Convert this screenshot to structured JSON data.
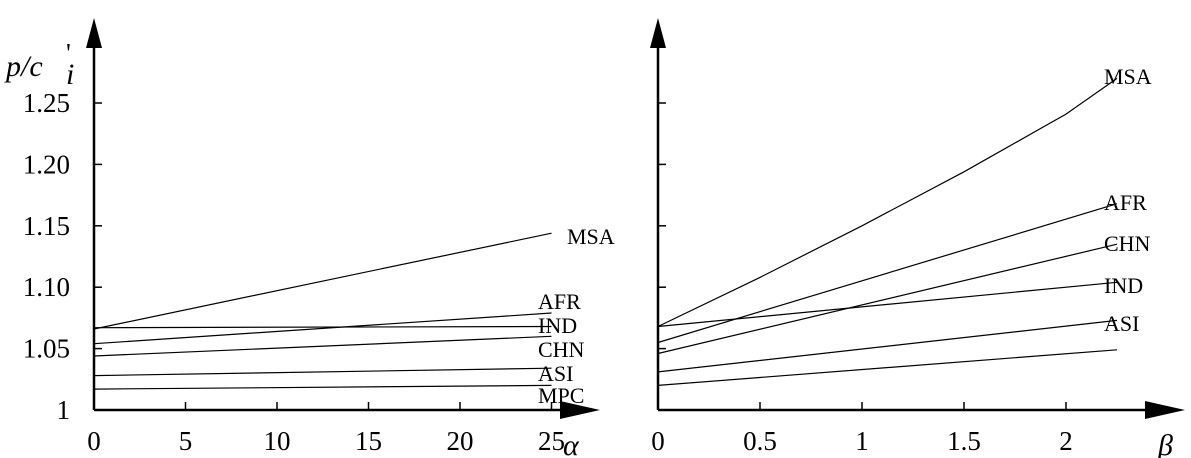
{
  "chart_data": [
    {
      "type": "line",
      "ylabel": "p/c",
      "xlabel": "α",
      "xlim": [
        0,
        28.5
      ],
      "ylim": [
        1.0,
        1.3
      ],
      "xticks": [
        "0",
        "5",
        "10",
        "15",
        "20",
        "25"
      ],
      "xtick_values": [
        0,
        5,
        10,
        15,
        20,
        25
      ],
      "yticks": [
        "1",
        "1.05",
        "1.10",
        "1.15",
        "1.20",
        "1.25"
      ],
      "ytick_values": [
        1.0,
        1.05,
        1.1,
        1.15,
        1.2,
        1.25
      ],
      "series": [
        {
          "name": "MSA",
          "x": [
            0,
            25
          ],
          "values": [
            1.066,
            1.144
          ]
        },
        {
          "name": "AFR",
          "x": [
            0,
            25
          ],
          "values": [
            1.054,
            1.079
          ]
        },
        {
          "name": "IND",
          "x": [
            0,
            25
          ],
          "values": [
            1.067,
            1.068
          ]
        },
        {
          "name": "CHN",
          "x": [
            0,
            25
          ],
          "values": [
            1.044,
            1.06
          ]
        },
        {
          "name": "ASI",
          "x": [
            0,
            25
          ],
          "values": [
            1.028,
            1.034
          ]
        },
        {
          "name": "MPC",
          "x": [
            0,
            25
          ],
          "values": [
            1.017,
            1.02
          ]
        }
      ]
    },
    {
      "type": "line",
      "xlabel": "β",
      "xlim": [
        0,
        2.6
      ],
      "ylim": [
        1.0,
        1.3
      ],
      "xticks": [
        "0",
        "0.5",
        "1",
        "1.5",
        "2"
      ],
      "xtick_values": [
        0,
        0.5,
        1,
        1.5,
        2
      ],
      "series": [
        {
          "name": "MSA",
          "x": [
            0,
            0.5,
            1,
            1.5,
            2,
            2.25
          ],
          "values": [
            1.068,
            1.108,
            1.15,
            1.194,
            1.241,
            1.27
          ]
        },
        {
          "name": "AFR",
          "x": [
            0,
            2.25
          ],
          "values": [
            1.055,
            1.168
          ]
        },
        {
          "name": "CHN",
          "x": [
            0,
            2.25
          ],
          "values": [
            1.046,
            1.135
          ]
        },
        {
          "name": "IND",
          "x": [
            0,
            2.25
          ],
          "values": [
            1.068,
            1.104
          ]
        },
        {
          "name": "ASI",
          "x": [
            0,
            2.25
          ],
          "values": [
            1.031,
            1.073
          ]
        },
        {
          "name": "",
          "x": [
            0,
            2.25
          ],
          "values": [
            1.02,
            1.049
          ]
        }
      ],
      "right_labels": [
        "MSA",
        "AFR",
        "CHN",
        "IND",
        "ASI"
      ]
    }
  ]
}
